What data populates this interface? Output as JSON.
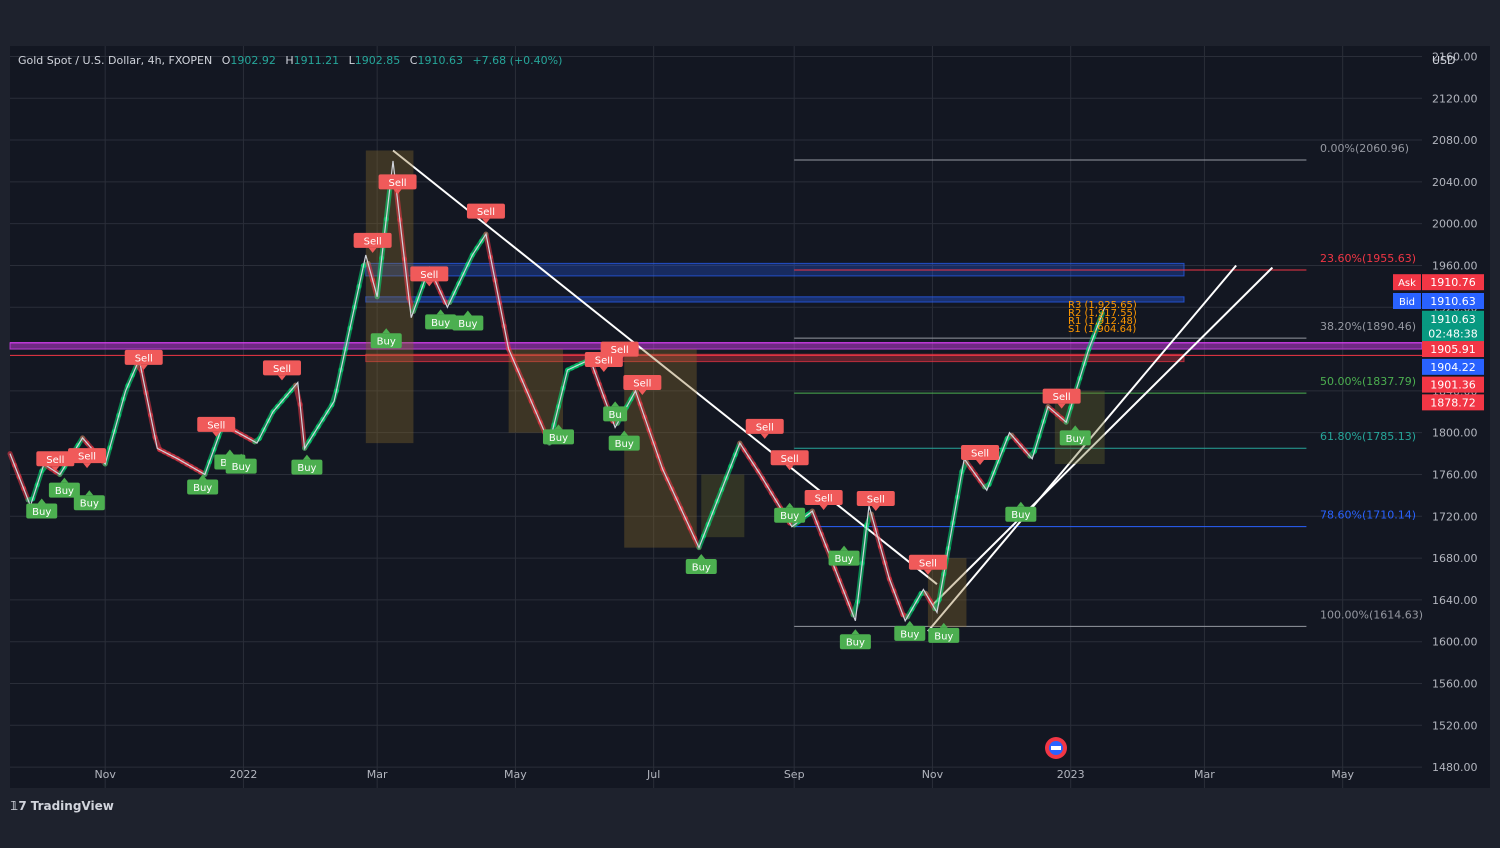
{
  "header": {
    "symbol": "Gold Spot / U.S. Dollar, 4h, FXOPEN",
    "open_label": "O",
    "open": "1902.92",
    "high_label": "H",
    "high": "1911.21",
    "low_label": "L",
    "low": "1902.85",
    "close_label": "C",
    "close": "1910.63",
    "change": "+7.68 (+0.40%)"
  },
  "currency": "USD",
  "brand": "TradingView",
  "colors": {
    "bull": "#26a69a",
    "bear": "#ef5350",
    "grid": "#2a2e39",
    "text": "#b2b5be",
    "buy": "#4caf50",
    "sell": "#f05a5a"
  },
  "chart_data": {
    "type": "line",
    "title": "Gold Spot / U.S. Dollar, 4h, FXOPEN",
    "ylim": [
      1460,
      2170
    ],
    "y_ticks": [
      2160,
      2120,
      2080,
      2040,
      2000,
      1960,
      1920,
      1880,
      1840,
      1800,
      1760,
      1720,
      1680,
      1640,
      1600,
      1560,
      1520,
      1480
    ],
    "y_tick_labels": [
      "2160.00",
      "2120.00",
      "2080.00",
      "2040.00",
      "2000.00",
      "1960.00",
      "1920.00",
      "1880.00",
      "1840.00",
      "1800.00",
      "1760.00",
      "1720.00",
      "1680.00",
      "1640.00",
      "1600.00",
      "1560.00",
      "1520.00",
      "1480.00"
    ],
    "xlim": [
      "2021-09-20",
      "2023-06-05"
    ],
    "x_ticks": [
      {
        "date": "2021-11-01",
        "label": "Nov"
      },
      {
        "date": "2022-01-01",
        "label": "2022"
      },
      {
        "date": "2022-03-01",
        "label": "Mar"
      },
      {
        "date": "2022-05-01",
        "label": "May"
      },
      {
        "date": "2022-07-01",
        "label": "Jul"
      },
      {
        "date": "2022-09-01",
        "label": "Sep"
      },
      {
        "date": "2022-11-01",
        "label": "Nov"
      },
      {
        "date": "2023-01-01",
        "label": "2023"
      },
      {
        "date": "2023-03-01",
        "label": "Mar"
      },
      {
        "date": "2023-05-01",
        "label": "May"
      }
    ],
    "series": [
      {
        "values": [
          [
            "2021-09-20",
            1780
          ],
          [
            "2021-09-29",
            1730
          ],
          [
            "2021-10-05",
            1770
          ],
          [
            "2021-10-12",
            1760
          ],
          [
            "2021-10-22",
            1795
          ],
          [
            "2021-11-01",
            1770
          ],
          [
            "2021-11-10",
            1840
          ],
          [
            "2021-11-16",
            1870
          ],
          [
            "2021-11-24",
            1785
          ],
          [
            "2021-12-03",
            1775
          ],
          [
            "2021-12-15",
            1760
          ],
          [
            "2021-12-23",
            1808
          ],
          [
            "2022-01-07",
            1790
          ],
          [
            "2022-01-14",
            1820
          ],
          [
            "2022-01-25",
            1848
          ],
          [
            "2022-01-28",
            1785
          ],
          [
            "2022-02-10",
            1830
          ],
          [
            "2022-02-24",
            1970
          ],
          [
            "2022-03-01",
            1930
          ],
          [
            "2022-03-08",
            2060
          ],
          [
            "2022-03-16",
            1910
          ],
          [
            "2022-03-24",
            1958
          ],
          [
            "2022-04-01",
            1920
          ],
          [
            "2022-04-12",
            1970
          ],
          [
            "2022-04-18",
            1990
          ],
          [
            "2022-04-28",
            1880
          ],
          [
            "2022-05-16",
            1790
          ],
          [
            "2022-05-24",
            1860
          ],
          [
            "2022-06-03",
            1870
          ],
          [
            "2022-06-14",
            1805
          ],
          [
            "2022-06-23",
            1840
          ],
          [
            "2022-07-05",
            1765
          ],
          [
            "2022-07-21",
            1690
          ],
          [
            "2022-08-08",
            1790
          ],
          [
            "2022-08-17",
            1760
          ],
          [
            "2022-08-31",
            1710
          ],
          [
            "2022-09-09",
            1725
          ],
          [
            "2022-09-28",
            1620
          ],
          [
            "2022-10-04",
            1730
          ],
          [
            "2022-10-13",
            1660
          ],
          [
            "2022-10-20",
            1620
          ],
          [
            "2022-10-28",
            1650
          ],
          [
            "2022-11-03",
            1628
          ],
          [
            "2022-11-15",
            1775
          ],
          [
            "2022-11-25",
            1745
          ],
          [
            "2022-12-05",
            1800
          ],
          [
            "2022-12-15",
            1775
          ],
          [
            "2022-12-22",
            1825
          ],
          [
            "2022-12-30",
            1810
          ],
          [
            "2023-01-09",
            1880
          ],
          [
            "2023-01-16",
            1920
          ]
        ]
      }
    ],
    "fib_levels": [
      {
        "label": "0.00%(2060.96)",
        "value": 2060.96,
        "color": "#9598a1"
      },
      {
        "label": "23.60%(1955.63)",
        "value": 1955.63,
        "color": "#f23645"
      },
      {
        "label": "38.20%(1890.46)",
        "value": 1890.46,
        "color": "#9598a1"
      },
      {
        "label": "50.00%(1837.79)",
        "value": 1837.79,
        "color": "#4caf50"
      },
      {
        "label": "61.80%(1785.13)",
        "value": 1785.13,
        "color": "#26a69a"
      },
      {
        "label": "78.60%(1710.14)",
        "value": 1710.14,
        "color": "#2962ff"
      },
      {
        "label": "100.00%(1614.63)",
        "value": 1614.63,
        "color": "#9598a1"
      }
    ],
    "pivot_labels": [
      "R3 (1,925.65)",
      "R2 (1,917.55)",
      "R1 (1,912.48)",
      "S1 (1,904.64)"
    ],
    "price_tags": [
      {
        "text": "Ask",
        "value": "1910.76",
        "color": "#f23645",
        "y": 1944
      },
      {
        "text": "Bid",
        "value": "1910.63",
        "color": "#2962ff",
        "y": 1926
      },
      {
        "text": "",
        "value": "1910.63",
        "color": "#089981",
        "y": 1909
      },
      {
        "text": "",
        "value": "02:48:38",
        "color": "#089981",
        "y": 1895
      },
      {
        "text": "",
        "value": "1905.91",
        "color": "#f23645",
        "y": 1880
      },
      {
        "text": "",
        "value": "1904.22",
        "color": "#2962ff",
        "y": 1863
      },
      {
        "text": "",
        "value": "1901.36",
        "color": "#f23645",
        "y": 1846
      },
      {
        "text": "",
        "value": "1878.72",
        "color": "#f23645",
        "y": 1829
      }
    ],
    "signals": [
      {
        "date": "2021-10-04",
        "y": 1725,
        "label": "Buy",
        "kind": "buy"
      },
      {
        "date": "2021-10-10",
        "y": 1775,
        "label": "Sell",
        "kind": "sell"
      },
      {
        "date": "2021-10-14",
        "y": 1745,
        "label": "Buy",
        "kind": "buy"
      },
      {
        "date": "2021-10-24",
        "y": 1778,
        "label": "Sell",
        "kind": "sell"
      },
      {
        "date": "2021-10-25",
        "y": 1733,
        "label": "Buy",
        "kind": "buy"
      },
      {
        "date": "2021-11-18",
        "y": 1872,
        "label": "Sell",
        "kind": "sell"
      },
      {
        "date": "2021-12-14",
        "y": 1748,
        "label": "Buy",
        "kind": "buy"
      },
      {
        "date": "2021-12-20",
        "y": 1808,
        "label": "Sell",
        "kind": "sell"
      },
      {
        "date": "2021-12-26",
        "y": 1772,
        "label": "Buy",
        "kind": "buy"
      },
      {
        "date": "2021-12-31",
        "y": 1768,
        "label": "Buy",
        "kind": "buy"
      },
      {
        "date": "2022-01-18",
        "y": 1862,
        "label": "Sell",
        "kind": "sell"
      },
      {
        "date": "2022-01-29",
        "y": 1767,
        "label": "Buy",
        "kind": "buy"
      },
      {
        "date": "2022-02-27",
        "y": 1984,
        "label": "Sell",
        "kind": "sell"
      },
      {
        "date": "2022-03-05",
        "y": 1888,
        "label": "Buy",
        "kind": "buy"
      },
      {
        "date": "2022-03-10",
        "y": 2040,
        "label": "Sell",
        "kind": "sell"
      },
      {
        "date": "2022-03-24",
        "y": 1952,
        "label": "Sell",
        "kind": "sell"
      },
      {
        "date": "2022-03-29",
        "y": 1906,
        "label": "Buy",
        "kind": "buy"
      },
      {
        "date": "2022-04-10",
        "y": 1905,
        "label": "Buy",
        "kind": "buy"
      },
      {
        "date": "2022-04-18",
        "y": 2012,
        "label": "Sell",
        "kind": "sell"
      },
      {
        "date": "2022-05-20",
        "y": 1796,
        "label": "Buy",
        "kind": "buy"
      },
      {
        "date": "2022-06-09",
        "y": 1870,
        "label": "Sell",
        "kind": "sell"
      },
      {
        "date": "2022-06-14",
        "y": 1818,
        "label": "Bu",
        "kind": "buy"
      },
      {
        "date": "2022-06-16",
        "y": 1880,
        "label": "Sell",
        "kind": "sell"
      },
      {
        "date": "2022-06-18",
        "y": 1790,
        "label": "Buy",
        "kind": "buy"
      },
      {
        "date": "2022-06-26",
        "y": 1848,
        "label": "Sell",
        "kind": "sell"
      },
      {
        "date": "2022-07-22",
        "y": 1672,
        "label": "Buy",
        "kind": "buy"
      },
      {
        "date": "2022-08-19",
        "y": 1806,
        "label": "Sell",
        "kind": "sell"
      },
      {
        "date": "2022-08-30",
        "y": 1776,
        "label": "Sell",
        "kind": "sell"
      },
      {
        "date": "2022-08-30",
        "y": 1721,
        "label": "Buy",
        "kind": "buy"
      },
      {
        "date": "2022-09-14",
        "y": 1738,
        "label": "Sell",
        "kind": "sell"
      },
      {
        "date": "2022-09-23",
        "y": 1680,
        "label": "Buy",
        "kind": "buy"
      },
      {
        "date": "2022-09-28",
        "y": 1600,
        "label": "Buy",
        "kind": "buy"
      },
      {
        "date": "2022-10-07",
        "y": 1737,
        "label": "Sell",
        "kind": "sell"
      },
      {
        "date": "2022-10-22",
        "y": 1608,
        "label": "Buy",
        "kind": "buy"
      },
      {
        "date": "2022-10-30",
        "y": 1676,
        "label": "Sell",
        "kind": "sell"
      },
      {
        "date": "2022-11-06",
        "y": 1606,
        "label": "Buy",
        "kind": "buy"
      },
      {
        "date": "2022-11-22",
        "y": 1781,
        "label": "Sell",
        "kind": "sell"
      },
      {
        "date": "2022-12-10",
        "y": 1722,
        "label": "Buy",
        "kind": "buy"
      },
      {
        "date": "2022-12-28",
        "y": 1835,
        "label": "Sell",
        "kind": "sell"
      },
      {
        "date": "2023-01-03",
        "y": 1795,
        "label": "Buy",
        "kind": "buy"
      }
    ]
  }
}
